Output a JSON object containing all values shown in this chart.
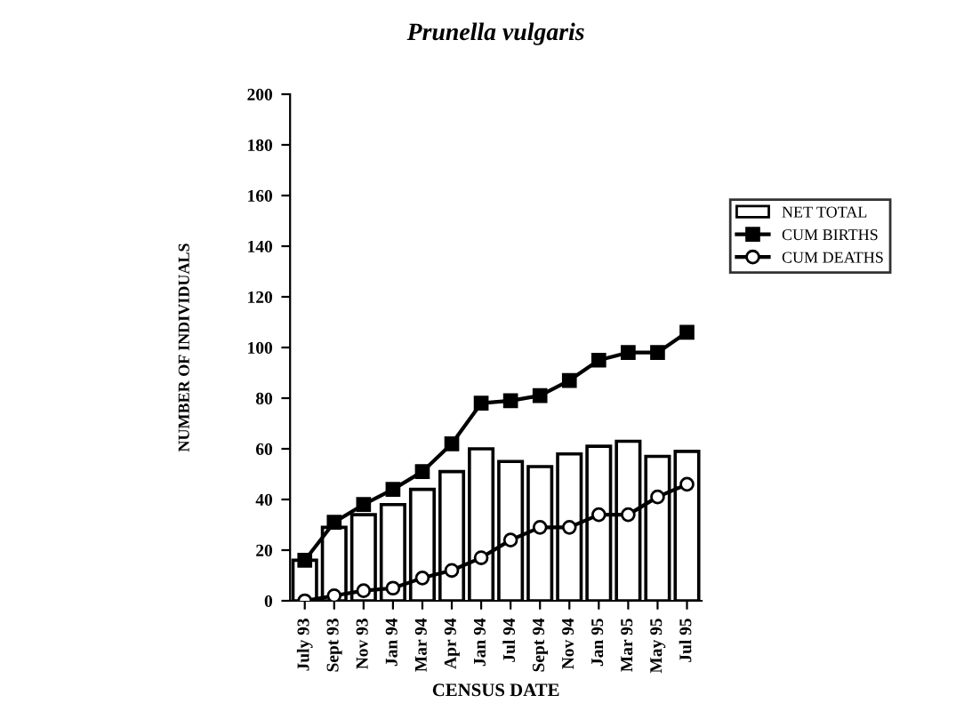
{
  "chart_data": {
    "type": "bar",
    "title": "Prunella vulgaris",
    "xlabel": "CENSUS DATE",
    "ylabel": "NUMBER OF INDIVIDUALS",
    "categories": [
      "July 93",
      "Sept 93",
      "Nov 93",
      "Jan 94",
      "Mar 94",
      "Apr 94",
      "Jan 94",
      "Jul 94",
      "Sept 94",
      "Nov 94",
      "Jan 95",
      "Mar 95",
      "May 95",
      "Jul 95"
    ],
    "series": [
      {
        "name": "NET TOTAL",
        "color": "#ffffff",
        "values": [
          16,
          29,
          34,
          38,
          44,
          51,
          60,
          55,
          53,
          58,
          61,
          63,
          57,
          59
        ]
      },
      {
        "name": "CUM BIRTHS",
        "type": "line",
        "marker": "square",
        "color": "#000000",
        "values": [
          16,
          31,
          38,
          44,
          51,
          62,
          78,
          79,
          81,
          87,
          95,
          98,
          98,
          106
        ]
      },
      {
        "name": "CUM DEATHS",
        "type": "line",
        "marker": "circle",
        "color": "#000000",
        "values": [
          0,
          2,
          4,
          5,
          9,
          12,
          17,
          24,
          29,
          29,
          34,
          34,
          41,
          46
        ]
      }
    ],
    "ylim": [
      0,
      200
    ],
    "yticks": [
      0,
      20,
      40,
      60,
      80,
      100,
      120,
      140,
      160,
      180,
      200
    ],
    "legend": "right",
    "grid": false
  }
}
